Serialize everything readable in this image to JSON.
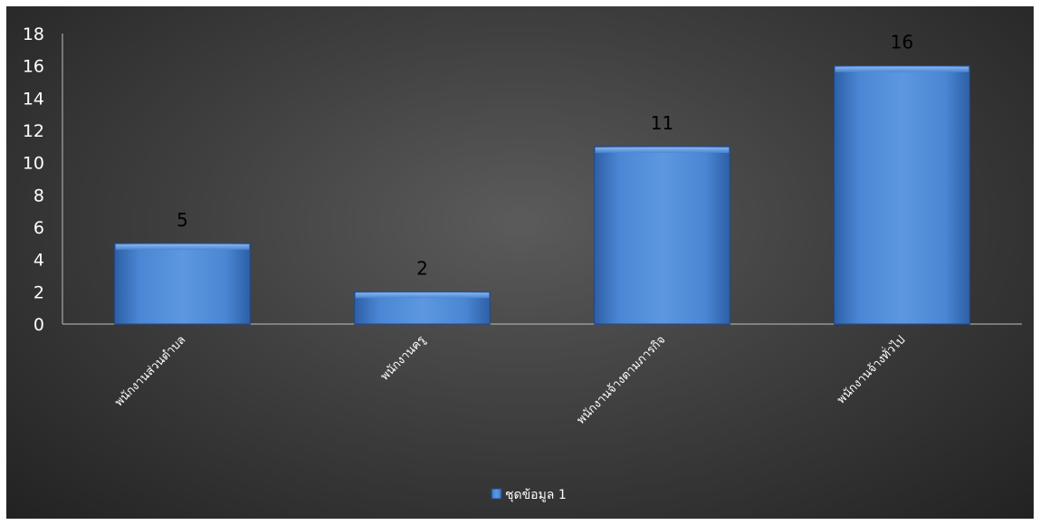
{
  "chart_data": {
    "type": "bar",
    "categories": [
      "พนักงานส่วนตำบล",
      "พนักงานครู",
      "พนักงานจ้างตามภารกิจ",
      "พนักงานจ้างทั่วไป"
    ],
    "series": [
      {
        "name": "ชุดข้อมูล 1",
        "values": [
          5,
          2,
          11,
          16
        ]
      }
    ],
    "data_labels": [
      "5",
      "2",
      "11",
      "16"
    ],
    "y_ticks": [
      "0",
      "2",
      "4",
      "6",
      "8",
      "10",
      "12",
      "14",
      "16",
      "18"
    ],
    "ylim": [
      0,
      18
    ],
    "title": "",
    "xlabel": "",
    "ylabel": "",
    "grid": false,
    "legend_position": "bottom",
    "colors": {
      "bar": "#4a86d4",
      "bar_edge": "#1f4a8a",
      "axis": "#bfbfbf",
      "background": "#404040"
    }
  }
}
